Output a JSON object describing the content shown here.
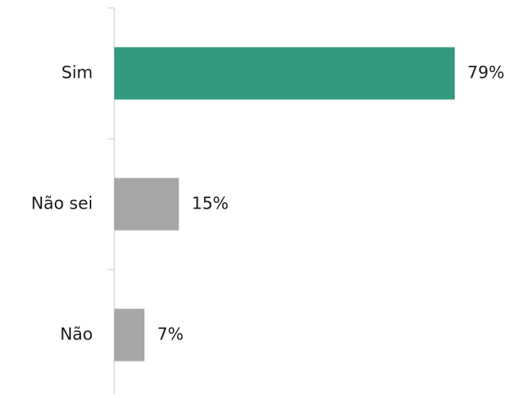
{
  "chart_data": {
    "type": "bar",
    "orientation": "horizontal",
    "categories": [
      "Sim",
      "Não sei",
      "Não"
    ],
    "values": [
      79,
      15,
      7
    ],
    "value_labels": [
      "79%",
      "15%",
      "7%"
    ],
    "colors": [
      "#339980",
      "#a6a6a6",
      "#a6a6a6"
    ]
  }
}
